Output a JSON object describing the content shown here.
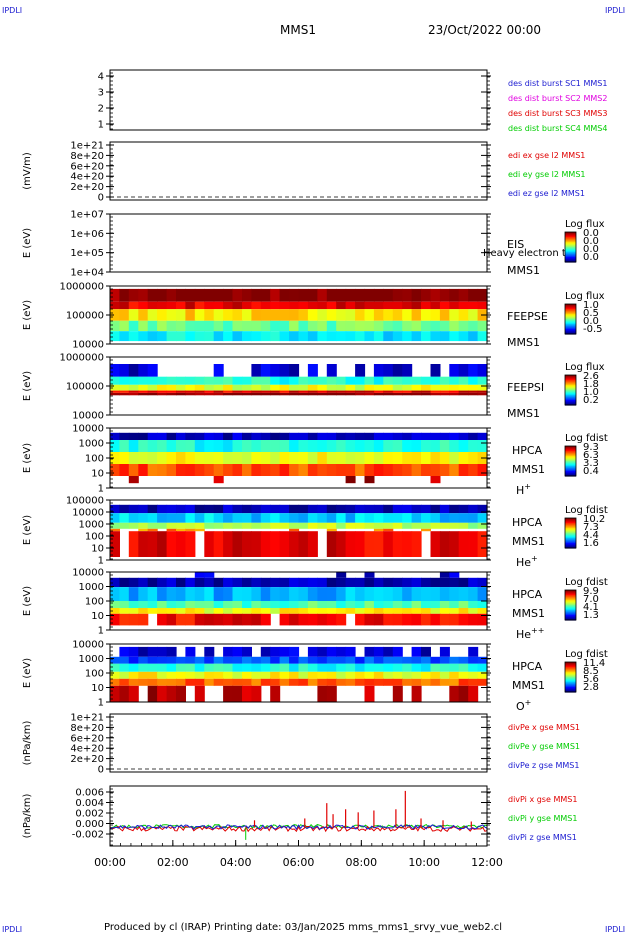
{
  "corner_label": "IPDLI",
  "header": {
    "spacecraft": "MMS1",
    "datetime": "23/Oct/2022 00:00"
  },
  "footer": "Produced by cl (IRAP)   Printing date: 03/Jan/2025   mms_mms1_srvy_vue_web2.cl",
  "colors": {
    "blue": "#1a1ad0",
    "magenta": "#e000e0",
    "red": "#e00000",
    "green": "#00cc00",
    "black": "#000000"
  },
  "chart_data": {
    "type": "stacked-timeseries",
    "xaxis": {
      "ticks": [
        "00:00",
        "02:00",
        "04:00",
        "06:00",
        "08:00",
        "10:00",
        "12:00"
      ],
      "range_hours": [
        0,
        12
      ]
    },
    "panels": [
      {
        "id": "sc",
        "type": "line",
        "ylabel": "",
        "yticks": [
          "4",
          "3",
          "2",
          "1"
        ],
        "legend": [
          {
            "text": "des dist burst SC1 MMS1",
            "color": "#1a1ad0"
          },
          {
            "text": "des dist burst SC2 MMS2",
            "color": "#e000e0"
          },
          {
            "text": "des dist burst SC3 MMS3",
            "color": "#e00000"
          },
          {
            "text": "des dist burst SC4 MMS4",
            "color": "#00cc00"
          }
        ]
      },
      {
        "id": "edi",
        "type": "line",
        "ylabel": "(mV/m)",
        "yticks": [
          "1e+21",
          "8e+20",
          "6e+20",
          "4e+20",
          "2e+20",
          "0"
        ],
        "dashed_zero": true,
        "legend": [
          {
            "text": "edi ex gse l2 MMS1",
            "color": "#e00000"
          },
          {
            "text": "edi ey gse l2 MMS1",
            "color": "#00cc00"
          },
          {
            "text": "edi ez gse l2 MMS1",
            "color": "#1a1ad0"
          }
        ]
      },
      {
        "id": "eis",
        "type": "heatmap",
        "ylabel": "E (eV)",
        "yticks": [
          "1e+07",
          "1e+06",
          "1e+05",
          "1e+04"
        ],
        "labels": [
          "EIS",
          "MMS1"
        ],
        "overlay": "Heavy electron to",
        "colorbar": {
          "title": "Log flux",
          "ticks": [
            "0.0",
            "0.0",
            "0.0",
            "0.0"
          ]
        }
      },
      {
        "id": "feepse",
        "type": "heatmap",
        "ylabel": "E (eV)",
        "yticks": [
          "1000000",
          "100000",
          "10000"
        ],
        "labels": [
          "FEEPSE",
          "MMS1"
        ],
        "colorbar": {
          "title": "Log flux",
          "ticks": [
            "1.0",
            "0.5",
            "0.0",
            "-0.5"
          ]
        }
      },
      {
        "id": "feepsi",
        "type": "heatmap",
        "ylabel": "E (eV)",
        "yticks": [
          "1000000",
          "100000",
          "10000"
        ],
        "labels": [
          "FEEPSI",
          "MMS1"
        ],
        "colorbar": {
          "title": "Log flux",
          "ticks": [
            "2.6",
            "1.8",
            "1.0",
            "0.2"
          ]
        }
      },
      {
        "id": "hpca_h",
        "type": "heatmap",
        "ylabel": "E (eV)",
        "yticks": [
          "10000",
          "1000",
          "100",
          "10",
          "1"
        ],
        "labels": [
          "HPCA",
          "MMS1"
        ],
        "species": "H",
        "charge": "+",
        "colorbar": {
          "title": "Log fdist",
          "ticks": [
            "9.3",
            "6.3",
            "3.3",
            "0.4"
          ]
        }
      },
      {
        "id": "hpca_he",
        "type": "heatmap",
        "ylabel": "E (eV)",
        "yticks": [
          "100000",
          "10000",
          "1000",
          "100",
          "10",
          "1"
        ],
        "labels": [
          "HPCA",
          "MMS1"
        ],
        "species": "He",
        "charge": "+",
        "colorbar": {
          "title": "Log fdist",
          "ticks": [
            "10.2",
            "7.3",
            "4.4",
            "1.6"
          ]
        }
      },
      {
        "id": "hpca_hepp",
        "type": "heatmap",
        "ylabel": "E (eV)",
        "yticks": [
          "10000",
          "1000",
          "100",
          "10",
          "1"
        ],
        "labels": [
          "HPCA",
          "MMS1"
        ],
        "species": "He",
        "charge": "++",
        "colorbar": {
          "title": "Log fdist",
          "ticks": [
            "9.9",
            "7.0",
            "4.1",
            "1.3"
          ]
        }
      },
      {
        "id": "hpca_o",
        "type": "heatmap",
        "ylabel": "E (eV)",
        "yticks": [
          "10000",
          "1000",
          "100",
          "10",
          "1"
        ],
        "labels": [
          "HPCA",
          "MMS1"
        ],
        "species": "O",
        "charge": "+",
        "colorbar": {
          "title": "Log fdist",
          "ticks": [
            "11.4",
            "8.5",
            "5.6",
            "2.8"
          ]
        }
      },
      {
        "id": "divpe",
        "type": "line",
        "ylabel": "(nPa/km)",
        "yticks": [
          "1e+21",
          "8e+20",
          "6e+20",
          "4e+20",
          "2e+20",
          "0"
        ],
        "dashed_zero": true,
        "legend": [
          {
            "text": "divPe x gse MMS1",
            "color": "#e00000"
          },
          {
            "text": "divPe y gse MMS1",
            "color": "#00cc00"
          },
          {
            "text": "divPe z gse MMS1",
            "color": "#1a1ad0"
          }
        ]
      },
      {
        "id": "divpi",
        "type": "line",
        "ylabel": "(nPa/km)",
        "yticks": [
          "0.006",
          "0.004",
          "0.002",
          "0.000",
          "-0.002"
        ],
        "ylim": [
          -0.003,
          0.0068
        ],
        "legend": [
          {
            "text": "divPi x gse MMS1",
            "color": "#e00000"
          },
          {
            "text": "divPi y gse MMS1",
            "color": "#00cc00"
          },
          {
            "text": "divPi z gse MMS1",
            "color": "#1a1ad0"
          }
        ],
        "spikes_x": [
          {
            "t": 4.6,
            "v": 0.0012
          },
          {
            "t": 6.2,
            "v": 0.0015
          },
          {
            "t": 6.9,
            "v": 0.004
          },
          {
            "t": 7.1,
            "v": 0.0022
          },
          {
            "t": 7.5,
            "v": 0.003
          },
          {
            "t": 7.9,
            "v": 0.0025
          },
          {
            "t": 8.4,
            "v": 0.0028
          },
          {
            "t": 9.1,
            "v": 0.003
          },
          {
            "t": 9.4,
            "v": 0.006
          },
          {
            "t": 9.9,
            "v": 0.0015
          },
          {
            "t": 10.6,
            "v": 0.0012
          },
          {
            "t": 11.5,
            "v": 0.001
          }
        ]
      }
    ]
  }
}
